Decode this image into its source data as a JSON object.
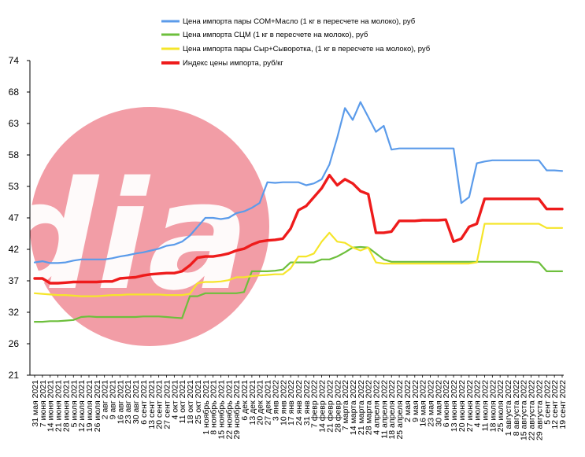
{
  "chart_data": {
    "type": "line",
    "title": "",
    "xlabel": "",
    "ylabel": "",
    "ylim": [
      21,
      74
    ],
    "yticks": [
      "21",
      "26",
      "32",
      "37",
      "42",
      "47",
      "53",
      "58",
      "63",
      "68",
      "74"
    ],
    "grid": false,
    "legend_position": "top",
    "watermark_text": "dia",
    "x": [
      "31 мая 2021",
      "7 июня 2021",
      "14 июня 2021",
      "21 июня 2021",
      "28 июня 2021",
      "5 июля 2021",
      "12 июля 2021",
      "19 июля 2021",
      "26 июля 2021",
      "2 авг 2021",
      "9 авг 2021",
      "16 авг 2021",
      "23 авг 2021",
      "30 авг 2021",
      "6 сент 2021",
      "13 сент 2021",
      "20 сент 2021",
      "27 сент 2021",
      "4 окт 2021",
      "11 окт 2021",
      "18 окт 2021",
      "25 окт 2021",
      "1 ноябрь 2021",
      "8 ноябрь 2021",
      "15 ноябрь 2021",
      "22 ноябрь 2021",
      "29 ноябрь 2021",
      "6 дек 2021",
      "13 дек 2021",
      "20 дек 2021",
      "27 дек 2021",
      "3 янв 2022",
      "10 янв 2022",
      "17 янв 2022",
      "24 янв 2022",
      "31 янв 2022",
      "7 февр 2022",
      "14 февр 2022",
      "21 февр 2022",
      "28 февр 2022",
      "7 марта 2022",
      "14 марта 2022",
      "21 марта 2022",
      "28 марта 2022",
      "4 апреля 2022",
      "11 апреля 2022",
      "18 апреля 2022",
      "25 апреля 2022",
      "2 мая 2022",
      "9 мая 2022",
      "16 мая 2022",
      "23 мая 2022",
      "30 мая 2022",
      "6 июня 2022",
      "13 июня 2022",
      "20 июня 2022",
      "27 июня 2022",
      "4 июля 2022",
      "11 июля 2022",
      "18 июля 2022",
      "25 июля 2022",
      "1 августа 2022",
      "8 августа 2022",
      "15 августа 2022",
      "22 августа 2022",
      "29 августа 2022",
      "5 сент 2022",
      "12 сент 2022",
      "19 сент 2022"
    ],
    "x_labels_shown": [
      "31 мая 2021",
      "7 июня 2021",
      "14 июня 2021",
      "21 июня 2021",
      "28 июня 2021",
      "5 июля 2021",
      "12 июля 2021",
      "19 июля 2021",
      "26 июля 2021",
      "2 авг 2021",
      "9 авг 2021",
      "16 авг 2021",
      "23 авг 2021",
      "30 авг 2021",
      "6 сент 2021",
      "13 сент 2021",
      "20 сент 2021",
      "27 сент 2021",
      "4 окт 2021",
      "11 окт 2021",
      "18 окт 2021",
      "25 окт 2021",
      "1 ноябрь 2021",
      "8 ноябрь 2021",
      "15 ноябрь 2021",
      "22 ноябрь 2021",
      "29 ноябрь 2021",
      "6 дек 2021",
      "13 дек 2021",
      "20 дек 2021",
      "27 дек 2021",
      "3 янв 2022",
      "10 янв 2022",
      "17 янв 2022",
      "24 янв 2022",
      "31 янв 2022",
      "7 февр 2022",
      "14 февр 2022",
      "21 февр 2022",
      "28 февр 2022",
      "7 марта 2022",
      "14 марта 2022",
      "21 марта 2022",
      "28 марта 2022",
      "4 апреля 2022",
      "11 апреля 2022",
      "18 апреля 2022",
      "25 апреля 2022",
      "2 мая 2022",
      "9 мая 2022",
      "16 мая 2022",
      "23 мая 2022",
      "30 мая 2022",
      "6 июня 2022",
      "13 июня 2022",
      "20 июня 2022",
      "27 июня 2022",
      "4 июля 2022",
      "11 июля 2022",
      "18 июля 2022",
      "25 июля 2022",
      "1 августа 2022",
      "8 августа 2022",
      "15 августа 2022",
      "22 августа 2022",
      "29 августа 2022",
      "5 сент 2022",
      "12 сент 2022",
      "19 сент 2022"
    ],
    "series": [
      {
        "name": "Цена импорта пары СОМ+Масло  (1 кг в пересчете на молоко), руб",
        "color": "#5B9BEA",
        "values": [
          40.0,
          40.2,
          39.9,
          39.9,
          40.0,
          40.3,
          40.5,
          40.5,
          40.5,
          40.5,
          40.7,
          41.0,
          41.2,
          41.5,
          41.7,
          42.0,
          42.3,
          42.8,
          43.0,
          43.5,
          44.5,
          46.0,
          47.5,
          47.5,
          47.3,
          47.5,
          48.3,
          48.6,
          49.2,
          50.0,
          53.5,
          53.4,
          53.5,
          53.5,
          53.5,
          53.0,
          53.3,
          54.0,
          56.5,
          61.0,
          66.0,
          64.0,
          67.0,
          64.5,
          62.0,
          63.0,
          59.0,
          59.2,
          59.2,
          59.2,
          59.2,
          59.2,
          59.2,
          59.2,
          59.2,
          50.0,
          51.0,
          56.7,
          57.0,
          57.2,
          57.2,
          57.2,
          57.2,
          57.2,
          57.2,
          57.2,
          55.5,
          55.5,
          55.4
        ]
      },
      {
        "name": "Цена  импорта СЦМ  (1 кг в пересчете на молоко), руб",
        "color": "#6DBF3C",
        "values": [
          30.0,
          30.0,
          30.1,
          30.1,
          30.2,
          30.3,
          30.8,
          30.9,
          30.8,
          30.8,
          30.8,
          30.8,
          30.8,
          30.8,
          30.9,
          30.9,
          30.9,
          30.8,
          30.7,
          30.6,
          34.3,
          34.3,
          34.8,
          34.8,
          34.8,
          34.8,
          34.8,
          35.0,
          38.5,
          38.5,
          38.5,
          38.6,
          38.8,
          40.0,
          40.0,
          40.0,
          40.0,
          40.5,
          40.5,
          41.0,
          41.7,
          42.5,
          42.6,
          42.5,
          41.5,
          40.5,
          40.1,
          40.1,
          40.1,
          40.1,
          40.1,
          40.1,
          40.1,
          40.1,
          40.1,
          40.1,
          40.1,
          40.1,
          40.1,
          40.1,
          40.1,
          40.1,
          40.1,
          40.1,
          40.1,
          40.0,
          38.5,
          38.5,
          38.5
        ]
      },
      {
        "name": "Цена  импорта пары Сыр+Сыворотка,  (1 кг в пересчете на молоко), руб",
        "color": "#F5E52A",
        "values": [
          34.8,
          34.7,
          34.6,
          34.5,
          34.5,
          34.4,
          34.3,
          34.3,
          34.3,
          34.4,
          34.5,
          34.5,
          34.6,
          34.6,
          34.6,
          34.6,
          34.6,
          34.5,
          34.5,
          34.5,
          34.7,
          36.5,
          36.7,
          36.7,
          36.8,
          37.0,
          37.5,
          37.5,
          37.7,
          37.8,
          37.9,
          38.0,
          38.0,
          39.0,
          41.0,
          41.0,
          41.5,
          43.5,
          45.0,
          43.5,
          43.3,
          42.5,
          42.0,
          42.5,
          40.0,
          39.8,
          39.8,
          39.8,
          39.8,
          39.8,
          39.8,
          39.8,
          39.8,
          39.8,
          39.8,
          39.8,
          39.8,
          40.0,
          46.5,
          46.5,
          46.5,
          46.5,
          46.5,
          46.5,
          46.5,
          46.5,
          45.8,
          45.8,
          45.8
        ]
      },
      {
        "name": "Индекс цены импорта, руб/кг",
        "color": "#EE1B1B",
        "values": [
          37.3,
          37.3,
          36.5,
          36.5,
          36.6,
          36.7,
          36.7,
          36.7,
          36.7,
          36.8,
          36.8,
          37.3,
          37.4,
          37.5,
          37.8,
          38.0,
          38.1,
          38.2,
          38.2,
          38.5,
          39.5,
          40.8,
          41.0,
          41.0,
          41.2,
          41.5,
          42.0,
          42.3,
          43.0,
          43.5,
          43.7,
          43.8,
          44.0,
          45.7,
          48.8,
          49.5,
          51.0,
          52.5,
          54.7,
          53.0,
          54.0,
          53.3,
          52.0,
          51.5,
          45.0,
          45.0,
          45.2,
          47.0,
          47.0,
          47.0,
          47.1,
          47.1,
          47.1,
          47.2,
          43.5,
          44.0,
          46.0,
          46.5,
          50.7,
          50.7,
          50.7,
          50.7,
          50.7,
          50.7,
          50.7,
          50.7,
          49.0,
          49.0,
          49.0
        ]
      }
    ]
  }
}
